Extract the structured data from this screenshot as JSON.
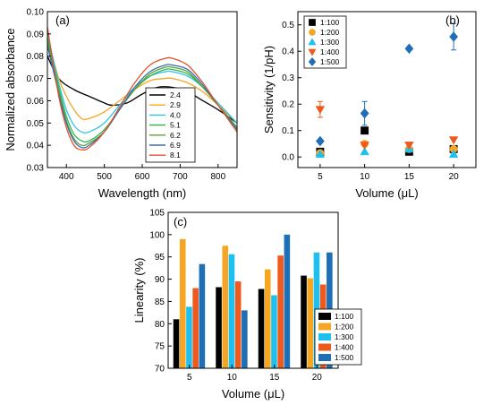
{
  "chart_data": [
    {
      "panel": "(a)",
      "type": "line",
      "xlabel": "Wavelength (nm)",
      "ylabel": "Normalized absorbance",
      "xlim": [
        350,
        850
      ],
      "ylim": [
        0.03,
        0.1
      ],
      "xticks": [
        "400",
        "500",
        "600",
        "700",
        "800"
      ],
      "yticks": [
        "0.03",
        "0.04",
        "0.05",
        "0.06",
        "0.07",
        "0.08",
        "0.09",
        "0.10"
      ],
      "legend_position": "center-right",
      "series": [
        {
          "name": "2.4",
          "color": "#000000",
          "x": [
            350,
            380,
            420,
            460,
            500,
            520,
            560,
            600,
            640,
            680,
            720,
            760,
            800,
            850
          ],
          "y": [
            0.08,
            0.07,
            0.065,
            0.062,
            0.059,
            0.058,
            0.059,
            0.063,
            0.066,
            0.066,
            0.064,
            0.06,
            0.056,
            0.05
          ]
        },
        {
          "name": "2.9",
          "color": "#f5a623",
          "x": [
            350,
            380,
            400,
            420,
            440,
            460,
            500,
            540,
            580,
            620,
            660,
            680,
            720,
            760,
            800,
            850
          ],
          "y": [
            0.088,
            0.07,
            0.062,
            0.056,
            0.052,
            0.052,
            0.055,
            0.06,
            0.065,
            0.069,
            0.07,
            0.07,
            0.068,
            0.064,
            0.058,
            0.05
          ]
        },
        {
          "name": "4.0",
          "color": "#2ec4e8",
          "x": [
            350,
            380,
            400,
            420,
            440,
            460,
            500,
            540,
            580,
            620,
            660,
            680,
            720,
            760,
            800,
            850
          ],
          "y": [
            0.09,
            0.068,
            0.056,
            0.049,
            0.046,
            0.046,
            0.05,
            0.058,
            0.066,
            0.071,
            0.073,
            0.073,
            0.071,
            0.066,
            0.059,
            0.05
          ]
        },
        {
          "name": "5.1",
          "color": "#2db84a",
          "x": [
            350,
            380,
            400,
            420,
            440,
            460,
            500,
            540,
            580,
            620,
            660,
            680,
            720,
            760,
            800,
            850
          ],
          "y": [
            0.088,
            0.066,
            0.053,
            0.045,
            0.042,
            0.042,
            0.047,
            0.056,
            0.065,
            0.071,
            0.074,
            0.074,
            0.072,
            0.066,
            0.058,
            0.048
          ]
        },
        {
          "name": "6.2",
          "color": "#5f9e3a",
          "x": [
            350,
            380,
            400,
            420,
            440,
            460,
            500,
            540,
            580,
            620,
            660,
            680,
            720,
            760,
            800,
            850
          ],
          "y": [
            0.086,
            0.064,
            0.051,
            0.043,
            0.04,
            0.041,
            0.046,
            0.056,
            0.065,
            0.072,
            0.075,
            0.075,
            0.073,
            0.066,
            0.058,
            0.048
          ]
        },
        {
          "name": "6.9",
          "color": "#3a6db3",
          "x": [
            350,
            380,
            400,
            420,
            440,
            460,
            500,
            540,
            580,
            620,
            660,
            680,
            720,
            760,
            800,
            850
          ],
          "y": [
            0.085,
            0.063,
            0.05,
            0.042,
            0.039,
            0.04,
            0.046,
            0.056,
            0.066,
            0.073,
            0.076,
            0.076,
            0.074,
            0.067,
            0.058,
            0.047
          ]
        },
        {
          "name": "8.1",
          "color": "#e0522a",
          "x": [
            350,
            380,
            400,
            420,
            440,
            460,
            500,
            540,
            580,
            620,
            660,
            680,
            720,
            760,
            800,
            850
          ],
          "y": [
            0.093,
            0.062,
            0.048,
            0.04,
            0.038,
            0.039,
            0.046,
            0.057,
            0.068,
            0.076,
            0.079,
            0.079,
            0.076,
            0.068,
            0.058,
            0.046
          ]
        }
      ]
    },
    {
      "panel": "(b)",
      "type": "scatter",
      "xlabel": "Volume (μL)",
      "ylabel": "Sensitivity (1/pH)",
      "xlim": [
        2.5,
        22.5
      ],
      "ylim": [
        -0.04,
        0.55
      ],
      "xticks": [
        "5",
        "10",
        "15",
        "20"
      ],
      "yticks": [
        "0.0",
        "0.1",
        "0.2",
        "0.3",
        "0.4",
        "0.5"
      ],
      "legend_position": "top-left",
      "x": [
        5,
        10,
        15,
        20
      ],
      "series": [
        {
          "name": "1:100",
          "color": "#000000",
          "marker": "square",
          "values": [
            0.02,
            0.1,
            0.02,
            0.03
          ],
          "errors": [
            0.005,
            0.012,
            0.005,
            0.005
          ]
        },
        {
          "name": "1:200",
          "color": "#f5a623",
          "marker": "circle",
          "values": [
            0.015,
            0.05,
            0.03,
            0.03
          ],
          "errors": [
            0.005,
            0.008,
            0.005,
            0.005
          ]
        },
        {
          "name": "1:300",
          "color": "#1ec0ef",
          "marker": "triangle-up",
          "values": [
            0.01,
            0.02,
            0.03,
            0.01
          ],
          "errors": [
            0.003,
            0.003,
            0.003,
            0.003
          ]
        },
        {
          "name": "1:400",
          "color": "#ee5a1e",
          "marker": "triangle-down",
          "values": [
            0.18,
            0.045,
            0.045,
            0.065
          ],
          "errors": [
            0.03,
            0.005,
            0.005,
            0.005
          ]
        },
        {
          "name": "1:500",
          "color": "#1f6fb6",
          "marker": "diamond",
          "values": [
            0.06,
            0.165,
            0.41,
            0.455
          ],
          "errors": [
            0.005,
            0.045,
            0.005,
            0.05
          ]
        }
      ]
    },
    {
      "panel": "(c)",
      "type": "bar",
      "xlabel": "Volume (μL)",
      "ylabel": "Linearity (%)",
      "ylim": [
        70,
        105
      ],
      "yticks": [
        "70",
        "75",
        "80",
        "85",
        "90",
        "95",
        "100",
        "105"
      ],
      "categories": [
        "5",
        "10",
        "15",
        "20"
      ],
      "legend_position": "bottom-right",
      "series": [
        {
          "name": "1:100",
          "color": "#000000",
          "values": [
            81.0,
            88.2,
            87.8,
            90.8
          ]
        },
        {
          "name": "1:200",
          "color": "#f5a623",
          "values": [
            99.0,
            97.5,
            92.2,
            90.2
          ]
        },
        {
          "name": "1:300",
          "color": "#1ec0ef",
          "values": [
            83.8,
            95.6,
            86.4,
            96.0
          ]
        },
        {
          "name": "1:400",
          "color": "#ee5a1e",
          "values": [
            88.0,
            89.5,
            95.3,
            88.8
          ]
        },
        {
          "name": "1:500",
          "color": "#1f6fb6",
          "values": [
            93.4,
            83.0,
            100.0,
            96.0
          ]
        }
      ]
    }
  ]
}
